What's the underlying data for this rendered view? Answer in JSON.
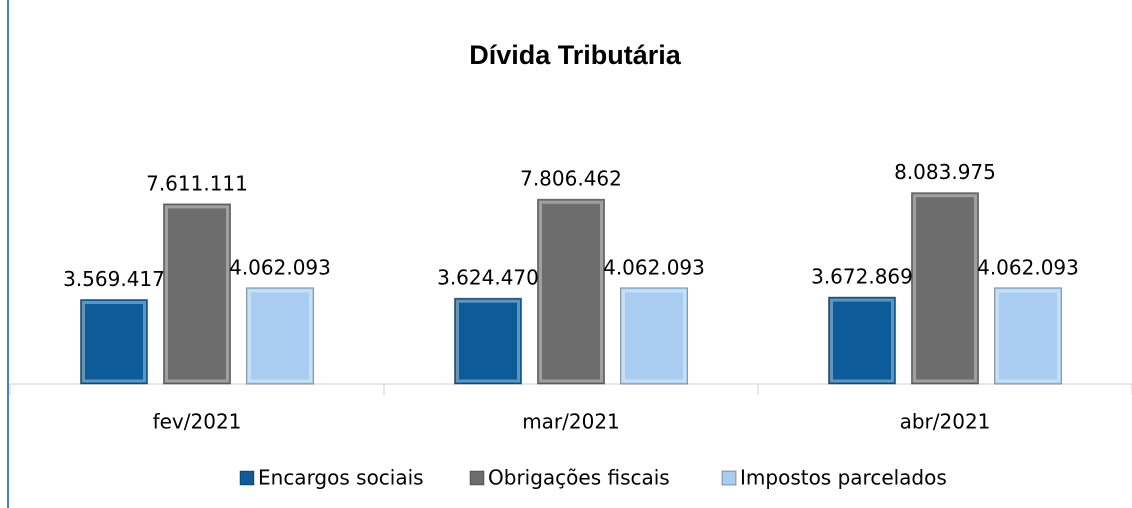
{
  "chart_data": {
    "type": "bar",
    "title": "Dívida Tributária",
    "categories": [
      "fev/2021",
      "mar/2021",
      "abr/2021"
    ],
    "series": [
      {
        "name": "Encargos sociais",
        "color": "#0d5c99",
        "values": [
          3569417,
          3624470,
          3672869
        ],
        "value_labels": [
          "3.569.417",
          "3.624.470",
          "3.672.869"
        ]
      },
      {
        "name": "Obrigações fiscais",
        "color": "#6d6d6d",
        "values": [
          7611111,
          7806462,
          8083975
        ],
        "value_labels": [
          "7.611.111",
          "7.806.462",
          "8.083.975"
        ]
      },
      {
        "name": "Impostos parcelados",
        "color": "#a8cdf1",
        "values": [
          4062093,
          4062093,
          4062093
        ],
        "value_labels": [
          "4.062.093",
          "4.062.093",
          "4.062.093"
        ]
      }
    ],
    "ylim": [
      0,
      9000000
    ],
    "legend": "bottom"
  }
}
